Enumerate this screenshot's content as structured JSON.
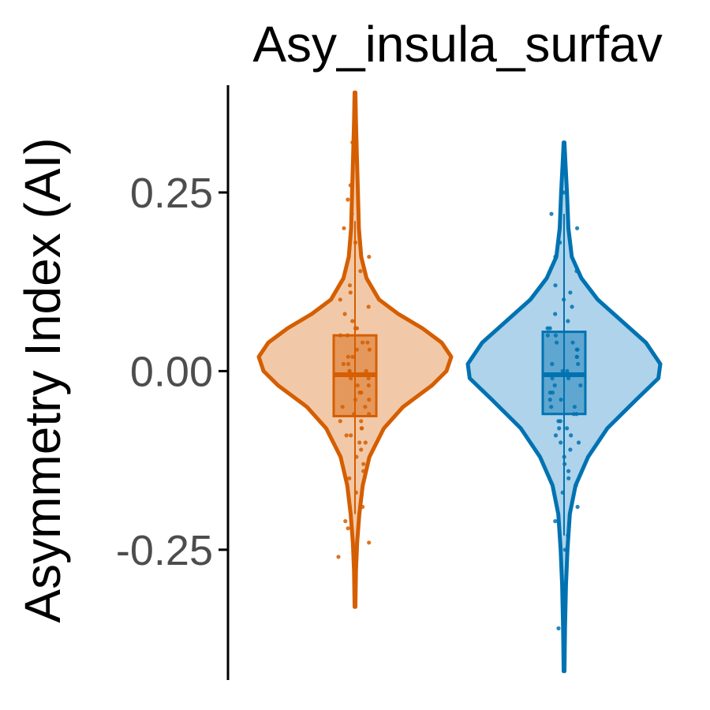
{
  "chart_data": {
    "type": "violin",
    "title": "Asy_insula_surfav",
    "xlabel": "",
    "ylabel": "Asymmetry Index (AI)",
    "ylim": [
      -0.45,
      0.42
    ],
    "y_ticks": [
      0.25,
      0.0,
      -0.25
    ],
    "y_tick_labels": [
      "0.25",
      "0.00",
      "-0.25"
    ],
    "grid": false,
    "legend": "none",
    "groups": [
      {
        "color": "#d55e00",
        "fill": "#f2c9a8",
        "min": -0.33,
        "max": 0.39,
        "q1": -0.063,
        "median": -0.005,
        "q3": 0.05,
        "whisker_low": -0.2,
        "whisker_high": 0.21,
        "density": [
          [
            -0.33,
            0.004
          ],
          [
            -0.28,
            0.01
          ],
          [
            -0.24,
            0.022
          ],
          [
            -0.2,
            0.045
          ],
          [
            -0.16,
            0.08
          ],
          [
            -0.12,
            0.15
          ],
          [
            -0.08,
            0.3
          ],
          [
            -0.05,
            0.5
          ],
          [
            -0.02,
            0.8
          ],
          [
            0.0,
            0.95
          ],
          [
            0.02,
            1.0
          ],
          [
            0.04,
            0.9
          ],
          [
            0.06,
            0.7
          ],
          [
            0.08,
            0.45
          ],
          [
            0.1,
            0.25
          ],
          [
            0.13,
            0.12
          ],
          [
            0.16,
            0.065
          ],
          [
            0.2,
            0.04
          ],
          [
            0.25,
            0.03
          ],
          [
            0.3,
            0.02
          ],
          [
            0.35,
            0.01
          ],
          [
            0.39,
            0.004
          ]
        ],
        "points": [
          -0.26,
          -0.24,
          -0.22,
          -0.21,
          -0.19,
          -0.17,
          -0.15,
          -0.14,
          -0.13,
          -0.12,
          -0.11,
          -0.1,
          -0.1,
          -0.09,
          -0.09,
          -0.08,
          -0.08,
          -0.07,
          -0.07,
          -0.06,
          -0.06,
          -0.05,
          -0.05,
          -0.04,
          -0.04,
          -0.03,
          -0.03,
          -0.02,
          -0.02,
          -0.01,
          -0.01,
          0.0,
          0.0,
          0.0,
          0.01,
          0.01,
          0.02,
          0.02,
          0.03,
          0.03,
          0.04,
          0.04,
          0.05,
          0.05,
          0.06,
          0.06,
          0.07,
          0.08,
          0.09,
          0.1,
          0.11,
          0.12,
          0.14,
          0.16,
          0.18,
          0.2,
          0.22,
          0.24,
          0.26,
          0.32
        ]
      },
      {
        "color": "#0072b2",
        "fill": "#aed3ea",
        "min": -0.42,
        "max": 0.32,
        "q1": -0.06,
        "median": -0.005,
        "q3": 0.055,
        "whisker_low": -0.23,
        "whisker_high": 0.22,
        "density": [
          [
            -0.42,
            0.004
          ],
          [
            -0.36,
            0.01
          ],
          [
            -0.3,
            0.02
          ],
          [
            -0.25,
            0.035
          ],
          [
            -0.2,
            0.06
          ],
          [
            -0.16,
            0.12
          ],
          [
            -0.12,
            0.25
          ],
          [
            -0.08,
            0.45
          ],
          [
            -0.04,
            0.75
          ],
          [
            -0.01,
            0.98
          ],
          [
            0.01,
            1.0
          ],
          [
            0.04,
            0.85
          ],
          [
            0.07,
            0.6
          ],
          [
            0.1,
            0.35
          ],
          [
            0.13,
            0.18
          ],
          [
            0.16,
            0.08
          ],
          [
            0.2,
            0.045
          ],
          [
            0.25,
            0.03
          ],
          [
            0.29,
            0.015
          ],
          [
            0.32,
            0.004
          ]
        ],
        "points": [
          -0.36,
          -0.25,
          -0.23,
          -0.21,
          -0.19,
          -0.17,
          -0.16,
          -0.15,
          -0.14,
          -0.13,
          -0.12,
          -0.11,
          -0.1,
          -0.1,
          -0.09,
          -0.09,
          -0.08,
          -0.08,
          -0.07,
          -0.07,
          -0.06,
          -0.06,
          -0.05,
          -0.05,
          -0.04,
          -0.04,
          -0.03,
          -0.03,
          -0.02,
          -0.02,
          -0.01,
          -0.01,
          0.0,
          0.0,
          0.01,
          0.01,
          0.02,
          0.02,
          0.03,
          0.03,
          0.04,
          0.04,
          0.05,
          0.05,
          0.06,
          0.06,
          0.07,
          0.08,
          0.09,
          0.1,
          0.11,
          0.12,
          0.14,
          0.16,
          0.18,
          0.2,
          0.22,
          0.25
        ]
      }
    ]
  }
}
